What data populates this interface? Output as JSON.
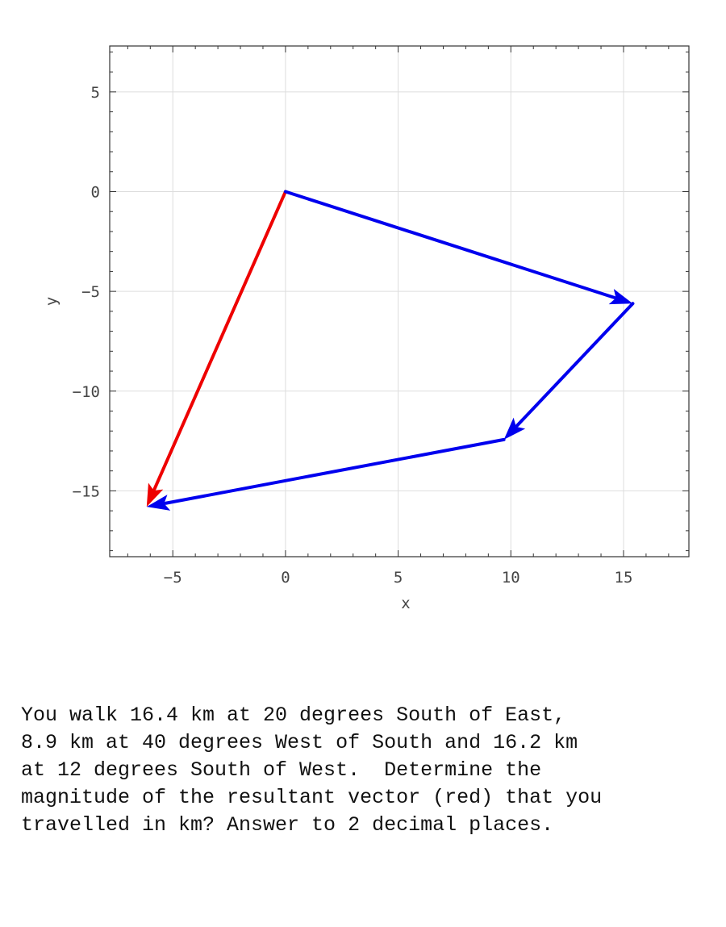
{
  "chart_data": {
    "type": "vector_diagram",
    "xlabel": "x",
    "ylabel": "y",
    "xlim": [
      -7.8,
      17.9
    ],
    "ylim": [
      -18.3,
      7.3
    ],
    "xticks": [
      -5,
      0,
      5,
      10,
      15
    ],
    "yticks": [
      5,
      0,
      -5,
      -10,
      -15
    ],
    "grid": true,
    "vectors": [
      {
        "from": [
          0,
          0
        ],
        "to": [
          15.41,
          -5.61
        ],
        "color": "#0000ee"
      },
      {
        "from": [
          15.41,
          -5.61
        ],
        "to": [
          9.69,
          -12.43
        ],
        "color": "#0000ee"
      },
      {
        "from": [
          9.69,
          -12.43
        ],
        "to": [
          -6.16,
          -15.8
        ],
        "color": "#0000ee"
      },
      {
        "from": [
          0,
          0
        ],
        "to": [
          -6.16,
          -15.8
        ],
        "color": "#ee0000"
      }
    ]
  },
  "question": "You walk 16.4 km at 20 degrees South of East,\n8.9 km at 40 degrees West of South and 16.2 km\nat 12 degrees South of West.  Determine the\nmagnitude of the resultant vector (red) that you\ntravelled in km? Answer to 2 decimal places."
}
